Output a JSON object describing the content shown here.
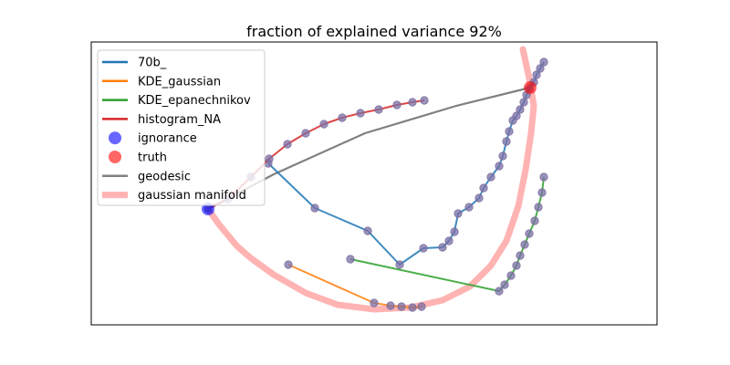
{
  "chart_data": {
    "type": "scatter",
    "title": "fraction of explained variance 92%",
    "xlabel": "",
    "ylabel": "",
    "axes_visible": false,
    "grid": false,
    "legend_position": "top-left",
    "xlim": [
      0,
      620
    ],
    "ylim": [
      0,
      310
    ],
    "colors": {
      "70b_": "#1f77b4",
      "KDE_gaussian": "#ff7f0e",
      "KDE_epanechnikov": "#2ca02c",
      "histogram_NA": "#d62728",
      "ignorance": "#0000ff",
      "truth": "#ff0000",
      "geodesic": "#808080",
      "gaussian manifold": "#ffb3b3",
      "marker_edge": "#7f6f9f"
    },
    "series": [
      {
        "name": "70b_",
        "kind": "line+markers",
        "x": [
          194,
          245,
          303,
          338,
          364,
          385,
          392,
          398,
          402,
          414,
          425,
          430,
          438,
          447,
          451,
          455,
          458,
          462,
          466,
          470,
          474,
          477,
          480,
          485,
          488,
          492,
          496
        ],
        "y": [
          133,
          182,
          207,
          244,
          226,
          225,
          218,
          208,
          188,
          181,
          171,
          160,
          148,
          136,
          125,
          109,
          98,
          86,
          81,
          74,
          66,
          58,
          51,
          44,
          36,
          29,
          22
        ]
      },
      {
        "name": "KDE_gaussian",
        "kind": "line+markers",
        "x": [
          216,
          310,
          328,
          340,
          352,
          362
        ],
        "y": [
          244,
          286,
          289,
          290,
          291,
          290
        ]
      },
      {
        "name": "KDE_epanechnikov",
        "kind": "line+markers",
        "x": [
          284,
          447,
          453,
          460,
          466,
          470,
          475,
          480,
          486,
          490,
          494,
          496
        ],
        "y": [
          238,
          273,
          266,
          256,
          245,
          234,
          222,
          210,
          196,
          181,
          165,
          148
        ]
      },
      {
        "name": "histogram_NA",
        "kind": "line+markers",
        "x": [
          128,
          150,
          175,
          195,
          215,
          235,
          255,
          275,
          295,
          315,
          335,
          352,
          365
        ],
        "y": [
          183,
          172,
          148,
          128,
          112,
          100,
          90,
          83,
          78,
          74,
          69,
          66,
          64
        ]
      },
      {
        "name": "ignorance",
        "kind": "point",
        "x": [
          128
        ],
        "y": [
          183
        ]
      },
      {
        "name": "truth",
        "kind": "point",
        "x": [
          481
        ],
        "y": [
          50
        ]
      },
      {
        "name": "geodesic",
        "kind": "line",
        "x": [
          128,
          200,
          300,
          400,
          481
        ],
        "y": [
          183,
          145,
          100,
          70,
          50
        ]
      },
      {
        "name": "gaussian manifold",
        "kind": "line",
        "x": [
          473,
          480,
          485,
          482,
          476,
          468,
          455,
          438,
          415,
          385,
          350,
          310,
          270,
          235,
          200,
          175,
          160,
          140,
          128
        ],
        "y": [
          8,
          40,
          70,
          100,
          140,
          180,
          218,
          245,
          268,
          283,
          291,
          293,
          288,
          275,
          255,
          237,
          224,
          200,
          183
        ]
      }
    ],
    "legend": [
      "70b_",
      "KDE_gaussian",
      "KDE_epanechnikov",
      "histogram_NA",
      "ignorance",
      "truth",
      "geodesic",
      "gaussian manifold"
    ]
  }
}
